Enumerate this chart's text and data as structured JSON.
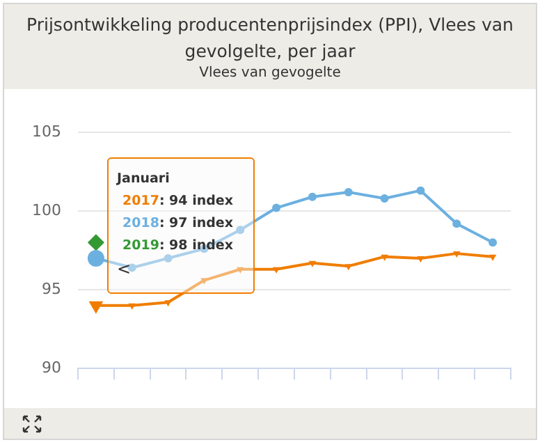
{
  "chart_data": {
    "type": "line",
    "title": "Prijsontwikkeling producentenprijsindex (PPI), Vlees van gevolgelte, per jaar",
    "subtitle": "Vlees van gevogelte",
    "categories": [
      null,
      null,
      null,
      null,
      null,
      null,
      null,
      null,
      null,
      null,
      null,
      null
    ],
    "series": [
      {
        "name": "2017",
        "color": "#f07d00",
        "marker": "triangle",
        "values": [
          94,
          94.0,
          94.2,
          95.6,
          96.3,
          96.3,
          96.7,
          96.5,
          97.1,
          97.0,
          97.3,
          97.1
        ]
      },
      {
        "name": "2018",
        "color": "#6cb0e0",
        "marker": "circle",
        "values": [
          97,
          96.4,
          97.0,
          97.6,
          98.8,
          100.2,
          100.9,
          101.2,
          100.8,
          101.3,
          99.2,
          98.0
        ]
      },
      {
        "name": "2019",
        "color": "#339933",
        "marker": "diamond",
        "values": [
          98,
          null,
          null,
          null,
          null,
          null,
          null,
          null,
          null,
          null,
          null,
          null
        ]
      }
    ],
    "annotations": [
      "Januari",
      ": 94 index",
      ": 97 index",
      ": 98 index",
      "<"
    ],
    "ylim": [
      90,
      105
    ],
    "yticks": [
      90,
      95,
      100,
      105
    ],
    "grid": "y",
    "legend": false
  }
}
